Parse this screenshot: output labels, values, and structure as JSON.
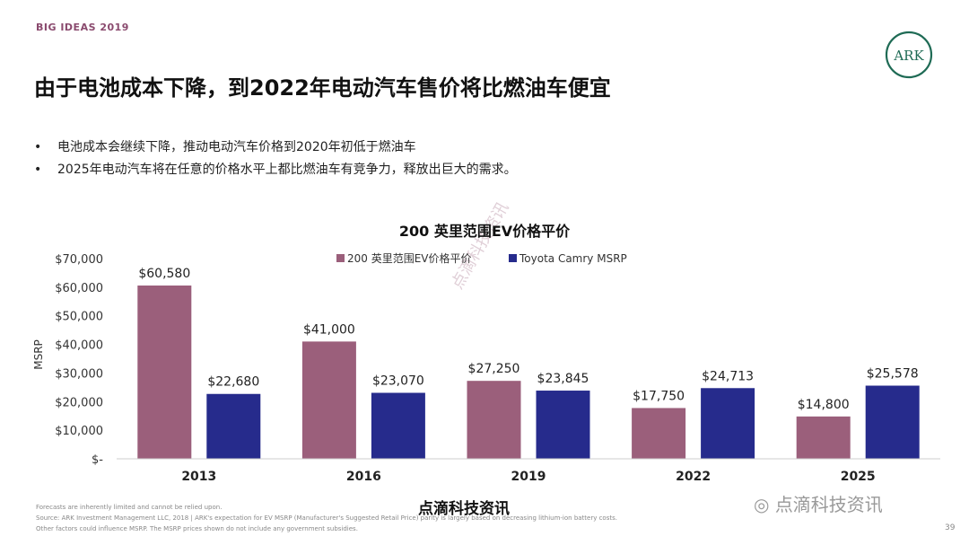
{
  "header": {
    "kicker": "BIG IDEAS 2019",
    "logo_text": "ARK"
  },
  "title": "由于电池成本下降，到2022年电动汽车售价将比燃油车便宜",
  "bullets": [
    "电池成本会继续下降，推动电动汽车价格到2020年初低于燃油车",
    "2025年电动汽车将在任意的价格水平上都比燃油车有竞争力，释放出巨大的需求。"
  ],
  "colors": {
    "ev": "#9b5f7b",
    "camry": "#262b8c",
    "accent": "#1f6b55"
  },
  "chart_data": {
    "type": "bar",
    "title": "200 英里范围EV价格平价",
    "categories": [
      "2013",
      "2016",
      "2019",
      "2022",
      "2025"
    ],
    "series": [
      {
        "name": "200 英里范围EV价格平价",
        "values": [
          60580,
          41000,
          27250,
          17750,
          14800
        ],
        "labels": [
          "$60,580",
          "$41,000",
          "$27,250",
          "$17,750",
          "$14,800"
        ]
      },
      {
        "name": "Toyota Camry MSRP",
        "values": [
          22680,
          23070,
          23845,
          24713,
          25578
        ],
        "labels": [
          "$22,680",
          "$23,070",
          "$23,845",
          "$24,713",
          "$25,578"
        ]
      }
    ],
    "ylabel": "MSRP",
    "ylim": [
      0,
      70000
    ],
    "yticks": [
      0,
      10000,
      20000,
      30000,
      40000,
      50000,
      60000,
      70000
    ],
    "ytick_labels": [
      "$-",
      "$10,000",
      "$20,000",
      "$30,000",
      "$40,000",
      "$50,000",
      "$60,000",
      "$70,000"
    ],
    "legend": "top-center",
    "grid": false
  },
  "footer": {
    "brand": "点滴科技资讯",
    "wechat": "点滴科技资讯",
    "note1": "Forecasts are inherently limited and cannot be relied upon.",
    "note2": "Source: ARK Investment Management LLC, 2018  |   ARK's expectation for EV MSRP (Manufacturer's Suggested Retail Price) parity is largely based on decreasing lithium-ion battery costs.",
    "note3": "Other factors could influence MSRP. The MSRP prices shown do not include any government subsidies.",
    "page": "39"
  },
  "watermark": "点滴科技资讯"
}
